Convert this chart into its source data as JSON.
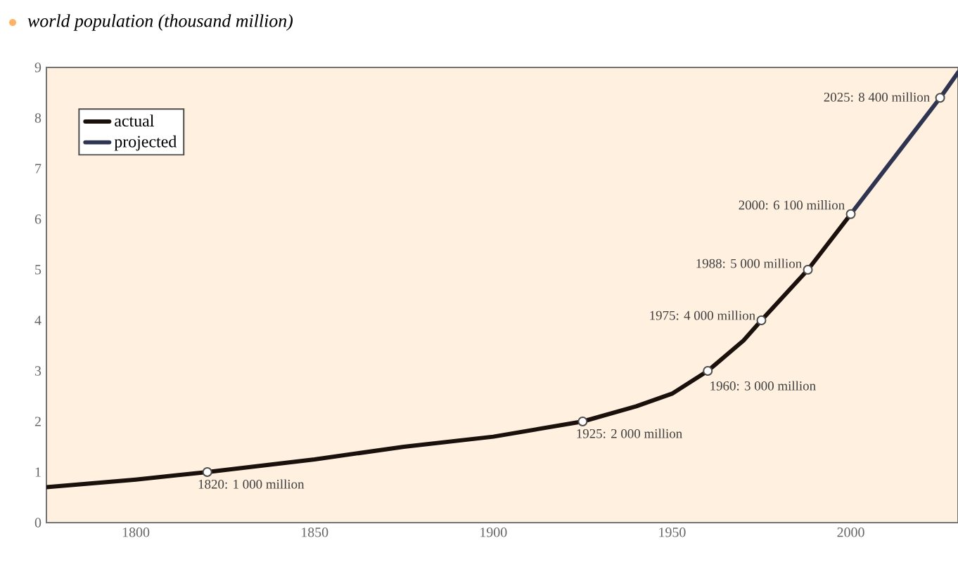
{
  "chart_data": {
    "type": "line",
    "title": "world population (thousand million)",
    "xlim": [
      1775,
      2030
    ],
    "ylim": [
      0,
      9
    ],
    "xticks": [
      1800,
      1850,
      1900,
      1950,
      2000
    ],
    "yticks": [
      0,
      1,
      2,
      3,
      4,
      5,
      6,
      7,
      8,
      9
    ],
    "legend": "top left",
    "marker": "none",
    "line_style": "solid",
    "series": [
      {
        "name": "actual",
        "color": "#1a100c",
        "x": [
          1775,
          1800,
          1820,
          1850,
          1875,
          1900,
          1925,
          1940,
          1950,
          1960,
          1970,
          1975,
          1988,
          2000
        ],
        "values": [
          0.7,
          0.85,
          1.0,
          1.25,
          1.5,
          1.7,
          2.0,
          2.3,
          2.55,
          3.0,
          3.6,
          4.0,
          5.0,
          6.1
        ]
      },
      {
        "name": "projected",
        "color": "#2f3550",
        "x": [
          2000,
          2025,
          2030
        ],
        "values": [
          6.1,
          8.4,
          8.9
        ]
      },
      {
        "type": "scatter",
        "marker": "circle",
        "color": "#ffffff",
        "x": [
          1820,
          1925,
          1960,
          1975,
          1988,
          2000,
          2025
        ],
        "values": [
          1.0,
          2.0,
          3.0,
          4.0,
          5.0,
          6.1,
          8.4
        ]
      }
    ],
    "annotations": [
      {
        "text": "1820: 1 000 million",
        "x": 1820,
        "y": 1.0
      },
      {
        "text": "1925: 2 000 million",
        "x": 1925,
        "y": 2.0
      },
      {
        "text": "1960: 3 000 million",
        "x": 1960,
        "y": 3.0
      },
      {
        "text": "1975: 4 000 million",
        "x": 1975,
        "y": 4.0
      },
      {
        "text": "1988: 5 000 million",
        "x": 1988,
        "y": 5.0
      },
      {
        "text": "2000: 6 100 million",
        "x": 2000,
        "y": 6.1
      },
      {
        "text": "2025: 8 400 million",
        "x": 2025,
        "y": 8.4
      }
    ]
  }
}
